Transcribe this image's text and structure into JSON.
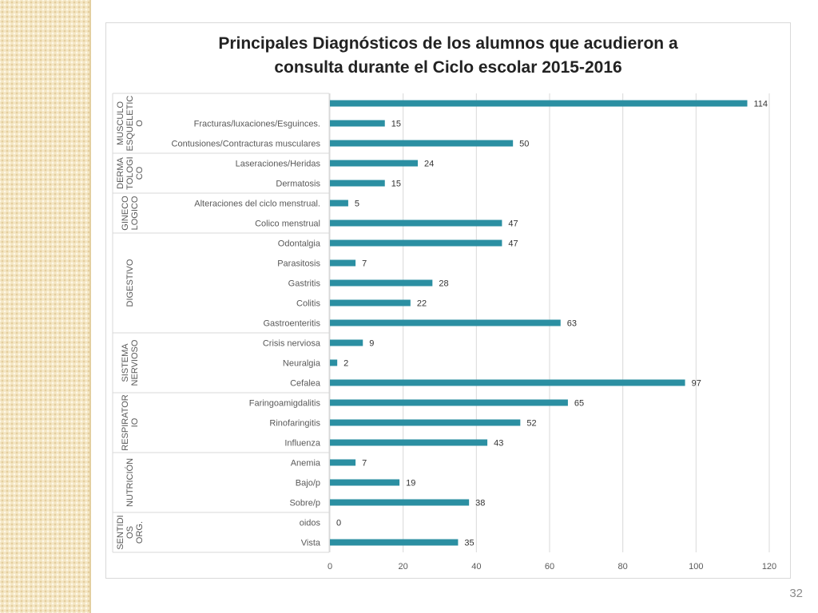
{
  "slide": {
    "page_number": "32"
  },
  "colors": {
    "bar": "#2b8fa2",
    "grid": "#d9d9d9",
    "axis_text": "#595959",
    "strip": "#f4e6c4"
  },
  "chart_data": {
    "type": "bar",
    "orientation": "horizontal",
    "title_lines": [
      "Principales Diagnósticos de los alumnos que acudieron a",
      "consulta durante el Ciclo escolar 2015-2016"
    ],
    "xlim": [
      0,
      120
    ],
    "xticks": [
      "0",
      "20",
      "40",
      "60",
      "80",
      "100",
      "120"
    ],
    "grid": "vertical",
    "data_labels": true,
    "groups": [
      {
        "label_lines": [
          "MUSCULO",
          "ESQUELETIC",
          "O"
        ],
        "items": [
          {
            "label": "",
            "value": 114
          },
          {
            "label": "Fracturas/luxaciones/Esguinces.",
            "value": 15
          },
          {
            "label": "Contusiones/Contracturas musculares",
            "value": 50
          }
        ]
      },
      {
        "label_lines": [
          "DERMA",
          "TOLOGI",
          "CO"
        ],
        "items": [
          {
            "label": "Laseraciones/Heridas",
            "value": 24
          },
          {
            "label": "Dermatosis",
            "value": 15
          }
        ]
      },
      {
        "label_lines": [
          "GINECO",
          "LOGICO"
        ],
        "items": [
          {
            "label": "Alteraciones del ciclo menstrual.",
            "value": 5
          },
          {
            "label": "Colico menstrual",
            "value": 47
          }
        ]
      },
      {
        "label_lines": [
          "DIGESTIVO"
        ],
        "items": [
          {
            "label": "Odontalgia",
            "value": 47
          },
          {
            "label": "Parasitosis",
            "value": 7
          },
          {
            "label": "Gastritis",
            "value": 28
          },
          {
            "label": "Colitis",
            "value": 22
          },
          {
            "label": "Gastroenteritis",
            "value": 63
          }
        ]
      },
      {
        "label_lines": [
          "SISTEMA",
          "NERVIOSO"
        ],
        "items": [
          {
            "label": "Crisis nerviosa",
            "value": 9
          },
          {
            "label": "Neuralgia",
            "value": 2
          },
          {
            "label": "Cefalea",
            "value": 97
          }
        ]
      },
      {
        "label_lines": [
          "RESPIRATOR",
          "IO"
        ],
        "items": [
          {
            "label": "Faringoamigdalitis",
            "value": 65
          },
          {
            "label": "Rinofaringitis",
            "value": 52
          },
          {
            "label": "Influenza",
            "value": 43
          }
        ]
      },
      {
        "label_lines": [
          "NUTRICIÓN"
        ],
        "items": [
          {
            "label": "Anemia",
            "value": 7
          },
          {
            "label": "Bajo/p",
            "value": 19
          },
          {
            "label": "Sobre/p",
            "value": 38
          }
        ]
      },
      {
        "label_lines": [
          "SENTIDI",
          "OS",
          "ORG."
        ],
        "items": [
          {
            "label": "oidos",
            "value": 0
          },
          {
            "label": "Vista",
            "value": 35
          }
        ]
      }
    ]
  }
}
